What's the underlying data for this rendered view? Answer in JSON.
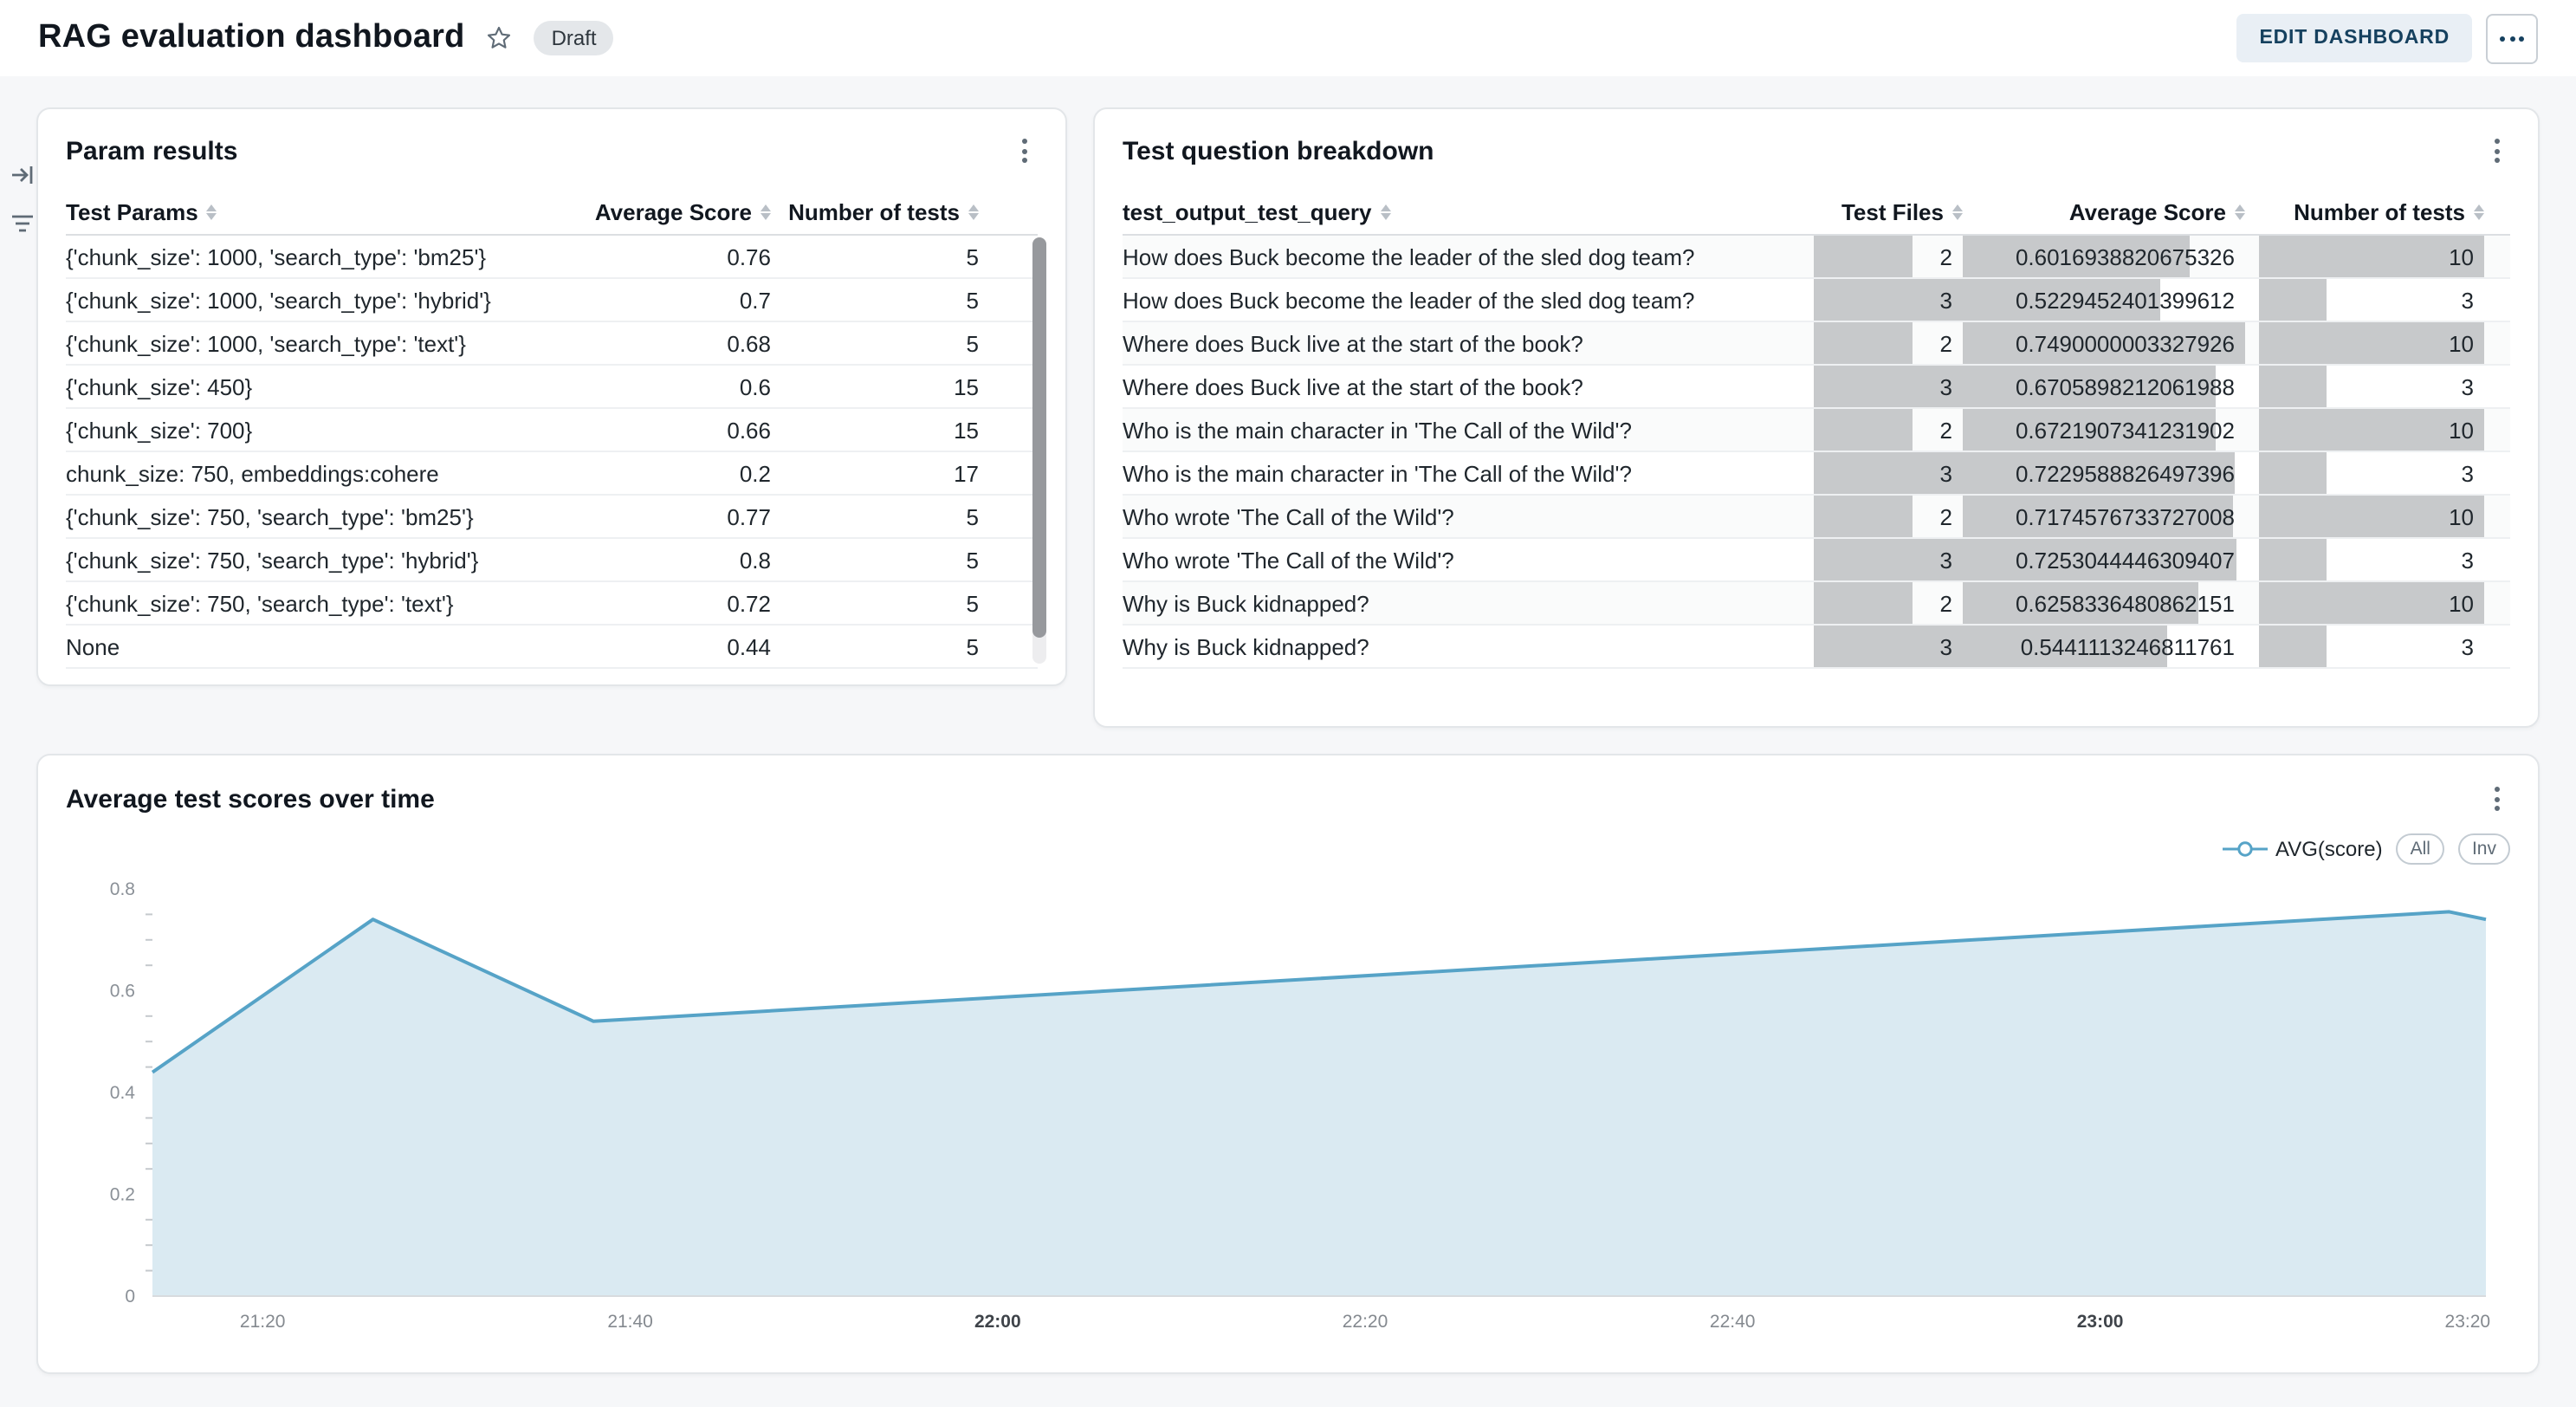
{
  "header": {
    "title": "RAG evaluation dashboard",
    "status_badge": "Draft",
    "edit_button": "EDIT DASHBOARD"
  },
  "colors": {
    "accent": "#56a3c7",
    "chart_fill": "#daeaf2",
    "data_bar": "#c7c9cb",
    "edit_button_text": "#16415f"
  },
  "param_results": {
    "title": "Param results",
    "columns": [
      "Test Params",
      "Average Score",
      "Number of tests"
    ],
    "rows": [
      {
        "params": "{'chunk_size': 1000, 'search_type': 'bm25'}",
        "score": "0.76",
        "tests": "5"
      },
      {
        "params": "{'chunk_size': 1000, 'search_type': 'hybrid'}",
        "score": "0.7",
        "tests": "5"
      },
      {
        "params": "{'chunk_size': 1000, 'search_type': 'text'}",
        "score": "0.68",
        "tests": "5"
      },
      {
        "params": "{'chunk_size': 450}",
        "score": "0.6",
        "tests": "15"
      },
      {
        "params": "{'chunk_size': 700}",
        "score": "0.66",
        "tests": "15"
      },
      {
        "params": "chunk_size: 750, embeddings:cohere",
        "score": "0.2",
        "tests": "17"
      },
      {
        "params": "{'chunk_size': 750, 'search_type': 'bm25'}",
        "score": "0.77",
        "tests": "5"
      },
      {
        "params": "{'chunk_size': 750, 'search_type': 'hybrid'}",
        "score": "0.8",
        "tests": "5"
      },
      {
        "params": "{'chunk_size': 750, 'search_type': 'text'}",
        "score": "0.72",
        "tests": "5"
      },
      {
        "params": "None",
        "score": "0.44",
        "tests": "5"
      }
    ]
  },
  "question_breakdown": {
    "title": "Test question breakdown",
    "columns": [
      "test_output_test_query",
      "Test Files",
      "Average Score",
      "Number of tests"
    ],
    "rows": [
      {
        "query": "How does Buck become the leader of the sled dog team?",
        "files": 2,
        "score": "0.6016938820675326",
        "tests": 10
      },
      {
        "query": "How does Buck become the leader of the sled dog team?",
        "files": 3,
        "score": "0.5229452401399612",
        "tests": 3
      },
      {
        "query": "Where does Buck live at the start of the book?",
        "files": 2,
        "score": "0.7490000003327926",
        "tests": 10
      },
      {
        "query": "Where does Buck live at the start of the book?",
        "files": 3,
        "score": "0.6705898212061988",
        "tests": 3
      },
      {
        "query": "Who is the main character in 'The Call of the Wild'?",
        "files": 2,
        "score": "0.6721907341231902",
        "tests": 10
      },
      {
        "query": "Who is the main character in 'The Call of the Wild'?",
        "files": 3,
        "score": "0.7229588826497396",
        "tests": 3
      },
      {
        "query": "Who wrote 'The Call of the Wild'?",
        "files": 2,
        "score": "0.7174576733727008",
        "tests": 10
      },
      {
        "query": "Who wrote 'The Call of the Wild'?",
        "files": 3,
        "score": "0.7253044446309407",
        "tests": 3
      },
      {
        "query": "Why is Buck kidnapped?",
        "files": 2,
        "score": "0.6258336480862151",
        "tests": 10
      },
      {
        "query": "Why is Buck kidnapped?",
        "files": 3,
        "score": "0.5441113246811761",
        "tests": 3
      }
    ]
  },
  "chart_panel": {
    "buttons": [
      "All",
      "Inv"
    ]
  },
  "chart_data": {
    "type": "area",
    "title": "Average test scores over time",
    "x_ticks": [
      "21:20",
      "21:40",
      "22:00",
      "22:20",
      "22:40",
      "23:00",
      "23:20"
    ],
    "x_bold_ticks": [
      "22:00",
      "23:00"
    ],
    "y_ticks": [
      0,
      0.2,
      0.4,
      0.6,
      0.8
    ],
    "y_minor_step": 0.05,
    "ylim": [
      0,
      0.8
    ],
    "series": [
      {
        "name": "AVG(score)",
        "points": [
          {
            "t": "21:14",
            "v": 0.44
          },
          {
            "t": "21:26",
            "v": 0.74
          },
          {
            "t": "21:38",
            "v": 0.54
          },
          {
            "t": "23:19",
            "v": 0.755
          },
          {
            "t": "23:21",
            "v": 0.74
          }
        ]
      }
    ],
    "line_color": "#56a3c7",
    "fill_color": "#daeaf2",
    "grid": false,
    "legend_position": "top-right"
  }
}
